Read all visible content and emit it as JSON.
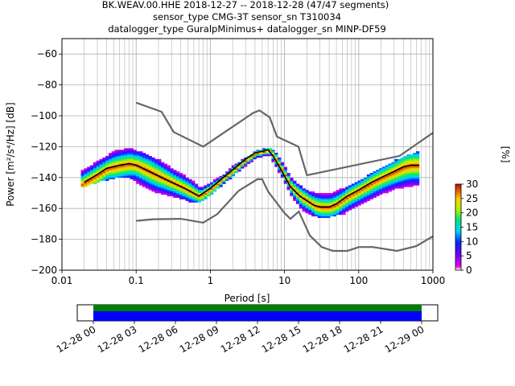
{
  "title": {
    "line1": "BK.WEAV.00.HHE   2018-12-27 -- 2018-12-28  (47/47 segments)",
    "line2": "sensor_type CMG-3T sensor_sn T310034",
    "line3": "datalogger_type GuralpMinimus+ datalogger_sn MINP-DF59"
  },
  "chart_data": {
    "type": "heatmap",
    "xlabel": "Period [s]",
    "ylabel": "Power [m²/s⁴/Hz] [dB]",
    "xscale": "log",
    "xlim": [
      0.01,
      1000
    ],
    "ylim": [
      -200,
      -50
    ],
    "x_ticks": [
      0.01,
      0.1,
      1,
      10,
      100,
      1000
    ],
    "x_tick_labels": [
      "0.01",
      "0.1",
      "1",
      "10",
      "100",
      "1000"
    ],
    "y_ticks": [
      -200,
      -180,
      -160,
      -140,
      -120,
      -100,
      -80,
      -60
    ],
    "y_tick_labels": [
      "−200",
      "−180",
      "−160",
      "−140",
      "−120",
      "−100",
      "−80",
      "−60"
    ],
    "grid": true,
    "colorbar": {
      "label": "[%]",
      "range": [
        0,
        30
      ],
      "ticks": [
        "0",
        "5",
        "10",
        "15",
        "20",
        "25",
        "30"
      ]
    },
    "series": [
      {
        "name": "mode",
        "color": "#000000",
        "points": [
          [
            0.02,
            -143
          ],
          [
            0.03,
            -138
          ],
          [
            0.04,
            -134
          ],
          [
            0.06,
            -132
          ],
          [
            0.08,
            -131
          ],
          [
            0.1,
            -132
          ],
          [
            0.15,
            -136
          ],
          [
            0.2,
            -139
          ],
          [
            0.3,
            -143
          ],
          [
            0.45,
            -147
          ],
          [
            0.7,
            -152
          ],
          [
            1,
            -147
          ],
          [
            1.5,
            -140
          ],
          [
            2,
            -135
          ],
          [
            3,
            -128
          ],
          [
            4,
            -124
          ],
          [
            5,
            -123
          ],
          [
            6,
            -122
          ],
          [
            7,
            -126
          ],
          [
            9,
            -135
          ],
          [
            12,
            -146
          ],
          [
            16,
            -152
          ],
          [
            20,
            -155
          ],
          [
            25,
            -158
          ],
          [
            30,
            -159
          ],
          [
            40,
            -159
          ],
          [
            50,
            -157
          ],
          [
            70,
            -152
          ],
          [
            100,
            -148
          ],
          [
            150,
            -143
          ],
          [
            200,
            -140
          ],
          [
            300,
            -136
          ],
          [
            400,
            -133
          ],
          [
            500,
            -132
          ],
          [
            650,
            -132
          ]
        ]
      },
      {
        "name": "NHNM",
        "color": "#666666",
        "points": [
          [
            0.1,
            -91.5
          ],
          [
            0.22,
            -97.4
          ],
          [
            0.32,
            -110.5
          ],
          [
            0.8,
            -120
          ],
          [
            3.8,
            -98
          ],
          [
            4.6,
            -96.5
          ],
          [
            6.3,
            -101
          ],
          [
            7.9,
            -113.5
          ],
          [
            15.4,
            -120
          ],
          [
            20,
            -138.5
          ],
          [
            354.8,
            -126
          ],
          [
            1000,
            -111
          ]
        ]
      },
      {
        "name": "NLNM",
        "color": "#666666",
        "points": [
          [
            0.1,
            -168
          ],
          [
            0.17,
            -167
          ],
          [
            0.4,
            -166.7
          ],
          [
            0.8,
            -169.2
          ],
          [
            1.24,
            -163.7
          ],
          [
            2.4,
            -148.6
          ],
          [
            4.3,
            -141.1
          ],
          [
            5,
            -141.1
          ],
          [
            6,
            -149
          ],
          [
            10,
            -163
          ],
          [
            12,
            -166.7
          ],
          [
            15.6,
            -162
          ],
          [
            21.9,
            -177.5
          ],
          [
            31.6,
            -185
          ],
          [
            45,
            -187.5
          ],
          [
            70,
            -187.5
          ],
          [
            101,
            -185
          ],
          [
            154,
            -185
          ],
          [
            328,
            -187.5
          ],
          [
            600,
            -184.4
          ],
          [
            1000,
            -178
          ]
        ]
      }
    ],
    "heatmap_band": [
      [
        0.018,
        -135,
        -146
      ],
      [
        0.03,
        -128,
        -142
      ],
      [
        0.05,
        -122,
        -140
      ],
      [
        0.08,
        -120,
        -140
      ],
      [
        0.1,
        -122,
        -143
      ],
      [
        0.15,
        -126,
        -148
      ],
      [
        0.2,
        -128,
        -150
      ],
      [
        0.3,
        -134,
        -152
      ],
      [
        0.5,
        -140,
        -155
      ],
      [
        0.7,
        -146,
        -156
      ],
      [
        1,
        -142,
        -150
      ],
      [
        1.5,
        -137,
        -143
      ],
      [
        2,
        -131,
        -138
      ],
      [
        3,
        -126,
        -131
      ],
      [
        4,
        -122,
        -127
      ],
      [
        6,
        -120,
        -125
      ],
      [
        7,
        -122,
        -131
      ],
      [
        9,
        -130,
        -140
      ],
      [
        12,
        -140,
        -152
      ],
      [
        16,
        -145,
        -160
      ],
      [
        20,
        -148,
        -163
      ],
      [
        30,
        -150,
        -166
      ],
      [
        40,
        -150,
        -165
      ],
      [
        60,
        -146,
        -163
      ],
      [
        100,
        -141,
        -157
      ],
      [
        150,
        -136,
        -153
      ],
      [
        200,
        -133,
        -150
      ],
      [
        300,
        -128,
        -147
      ],
      [
        500,
        -124,
        -145
      ],
      [
        650,
        -122,
        -145
      ]
    ]
  },
  "timeline": {
    "tick_labels": [
      "12-28 00",
      "12-28 03",
      "12-28 06",
      "12-28 09",
      "12-28 12",
      "12-28 15",
      "12-28 18",
      "12-28 21",
      "12-29 00"
    ],
    "colors": {
      "covered_top": "#008000",
      "covered_bottom": "#0000ff"
    }
  }
}
